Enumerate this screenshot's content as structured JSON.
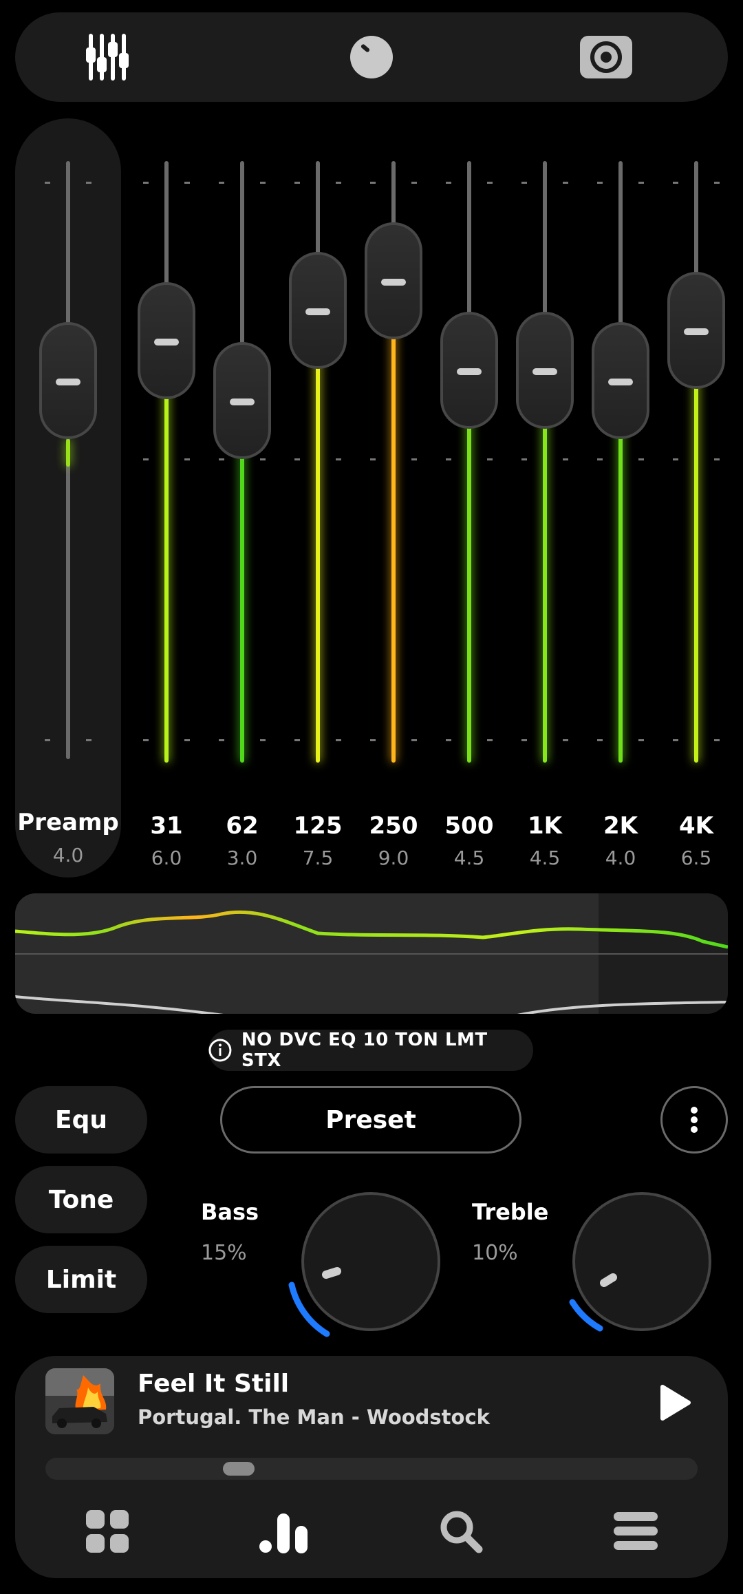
{
  "top_tabs": [
    {
      "icon": "equalizer-sliders-icon",
      "active": true
    },
    {
      "icon": "knob-icon",
      "active": false
    },
    {
      "icon": "speaker-icon",
      "active": false
    }
  ],
  "preamp": {
    "label": "Preamp",
    "value": "4.0"
  },
  "bands": [
    {
      "label": "31",
      "value": "6.0",
      "color": "#b8f21a"
    },
    {
      "label": "62",
      "value": "3.0",
      "color": "#4fd91a"
    },
    {
      "label": "125",
      "value": "7.5",
      "color": "#e8f01a"
    },
    {
      "label": "250",
      "value": "9.0",
      "color": "#ffb41a"
    },
    {
      "label": "500",
      "value": "4.5",
      "color": "#7ae01a"
    },
    {
      "label": "1K",
      "value": "4.5",
      "color": "#86e81a"
    },
    {
      "label": "2K",
      "value": "4.0",
      "color": "#6ee01a"
    },
    {
      "label": "4K",
      "value": "6.5",
      "color": "#c4f01a"
    }
  ],
  "status": {
    "text": "NO DVC EQ 10 TON LMT STX"
  },
  "modes": {
    "equ": "Equ",
    "tone": "Tone",
    "limit": "Limit"
  },
  "preset_label": "Preset",
  "tone": {
    "bass": {
      "label": "Bass",
      "value": "15%"
    },
    "treble": {
      "label": "Treble",
      "value": "10%"
    }
  },
  "player": {
    "title": "Feel It Still",
    "artist": "Portugal. The Man - Woodstock",
    "progress": 0.28
  },
  "bottom_nav": [
    {
      "icon": "grid-icon"
    },
    {
      "icon": "bars-icon",
      "active": true
    },
    {
      "icon": "search-icon"
    },
    {
      "icon": "menu-icon"
    }
  ],
  "colors": {
    "accent_blue": "#1e7bff",
    "panel": "#1c1c1c"
  }
}
